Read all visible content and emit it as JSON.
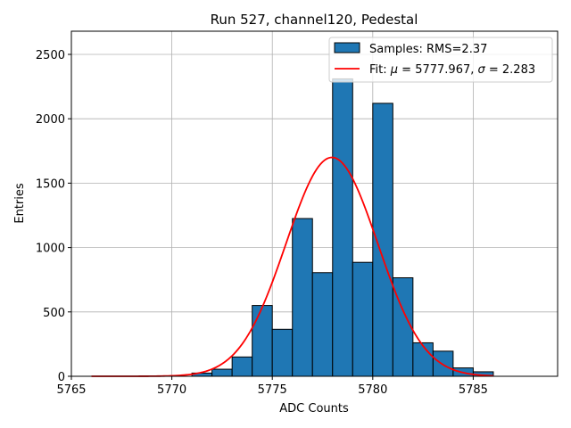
{
  "chart_data": {
    "type": "histogram",
    "title": "Run 527, channel120, Pedestal",
    "xlabel": "ADC Counts",
    "ylabel": "Entries",
    "xlim": [
      5765,
      5789.2
    ],
    "ylim": [
      0,
      2680
    ],
    "xticks": [
      5765,
      5770,
      5775,
      5780,
      5785
    ],
    "yticks": [
      0,
      500,
      1000,
      1500,
      2000,
      2500
    ],
    "grid": true,
    "legend_position": "top-right",
    "bar_color": "#1f77b4",
    "fit_color": "#ff0000",
    "bins": [
      {
        "x0": 5771,
        "x1": 5772,
        "count": 25
      },
      {
        "x0": 5772,
        "x1": 5773,
        "count": 55
      },
      {
        "x0": 5773,
        "x1": 5774,
        "count": 150
      },
      {
        "x0": 5774,
        "x1": 5775,
        "count": 550
      },
      {
        "x0": 5775,
        "x1": 5776,
        "count": 365
      },
      {
        "x0": 5776,
        "x1": 5777,
        "count": 1225
      },
      {
        "x0": 5777,
        "x1": 5778,
        "count": 805
      },
      {
        "x0": 5778,
        "x1": 5779,
        "count": 2310
      },
      {
        "x0": 5779,
        "x1": 5780,
        "count": 885
      },
      {
        "x0": 5780,
        "x1": 5781,
        "count": 2120
      },
      {
        "x0": 5781,
        "x1": 5782,
        "count": 765
      },
      {
        "x0": 5782,
        "x1": 5783,
        "count": 260
      },
      {
        "x0": 5783,
        "x1": 5784,
        "count": 195
      },
      {
        "x0": 5784,
        "x1": 5785,
        "count": 65
      },
      {
        "x0": 5785,
        "x1": 5786,
        "count": 35
      }
    ],
    "fit": {
      "mu": 5777.967,
      "sigma": 2.283,
      "amplitude": 1700,
      "x_range": [
        5766,
        5786
      ]
    },
    "legend": [
      {
        "kind": "bar",
        "label": "Samples: RMS=2.37"
      },
      {
        "kind": "line",
        "label_prefix": "Fit: ",
        "label_mu": "μ",
        "label_mid": " = 5777.967, ",
        "label_sigma": "σ",
        "label_suffix": " = 2.283"
      }
    ]
  }
}
